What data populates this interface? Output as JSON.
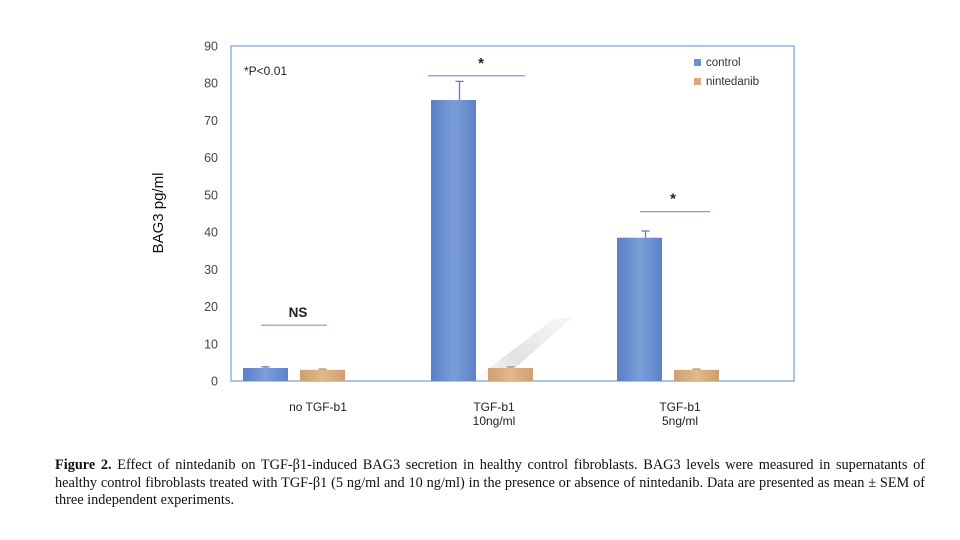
{
  "chart_data": {
    "type": "bar",
    "ylabel": "BAG3 pg/ml",
    "ylim": [
      0,
      90
    ],
    "yticks": [
      0,
      10,
      20,
      30,
      40,
      50,
      60,
      70,
      80,
      90
    ],
    "categories": [
      "no TGF-b1",
      "TGF-b1\n10ng/ml",
      "TGF-b1\n5ng/ml"
    ],
    "series": [
      {
        "name": "control",
        "color": "#6b8fd0",
        "values": [
          3.5,
          75.5,
          38.5
        ],
        "errors": [
          0.3,
          5.0,
          1.8
        ]
      },
      {
        "name": "nintedanib",
        "color": "#d7aa7c",
        "values": [
          3.0,
          3.5,
          3.0
        ],
        "errors": [
          0.2,
          0.3,
          0.2
        ]
      }
    ],
    "annotations": [
      {
        "text": "*P<0.01"
      },
      {
        "text": "NS",
        "category": 0,
        "y": 15
      },
      {
        "text": "*",
        "category": 1,
        "y": 82
      },
      {
        "text": "*",
        "category": 2,
        "y": 45.5
      }
    ],
    "legend_position": "top-right",
    "grid": false
  },
  "caption": {
    "label": "Figure 2.",
    "text": "Effect of nintedanib on TGF-β1-induced BAG3 secretion in healthy control fibroblasts. BAG3 levels were measured in supernatants of healthy control fibroblasts treated with TGF-β1 (5 ng/ml and 10 ng/ml) in the presence or absence of nintedanib. Data are presented as mean ± SEM of three independent experiments."
  }
}
